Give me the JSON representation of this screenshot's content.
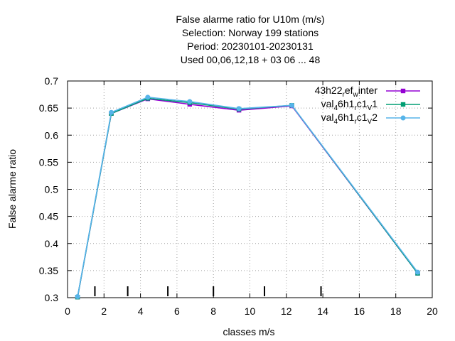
{
  "chart_data": {
    "type": "line",
    "title_lines": [
      "False alarme ratio  for U10m (m/s)",
      "Selection: Norway    199 stations",
      "Period: 20230101-20230131",
      "Used  00,06,12,18  + 03 06 ... 48"
    ],
    "xlabel": "classes m/s",
    "ylabel": "False alarme ratio",
    "xlim": [
      0,
      20
    ],
    "ylim": [
      0.3,
      0.7
    ],
    "xticks": [
      0,
      2,
      4,
      6,
      8,
      10,
      12,
      14,
      16,
      18,
      20
    ],
    "yticks": [
      0.3,
      0.35,
      0.4,
      0.45,
      0.5,
      0.55,
      0.6,
      0.65,
      0.7
    ],
    "grid": true,
    "legend_position": "top-right",
    "class_markers_x": [
      1.5,
      3.3,
      5.5,
      8.0,
      10.8,
      13.9
    ],
    "x": [
      0.55,
      2.4,
      4.4,
      6.7,
      9.4,
      12.3,
      19.2
    ],
    "series": [
      {
        "name_parts": [
          "43h22",
          "r",
          "ef",
          "w",
          "inter"
        ],
        "color": "#9400d3",
        "marker": "square",
        "values": [
          0.301,
          0.64,
          0.667,
          0.657,
          0.646,
          0.654,
          0.345
        ]
      },
      {
        "name_parts": [
          "val",
          "4",
          "6h1",
          "r",
          "c1",
          "V",
          "1"
        ],
        "color": "#009e73",
        "marker": "square",
        "values": [
          0.301,
          0.64,
          0.668,
          0.66,
          0.648,
          0.655,
          0.345
        ]
      },
      {
        "name_parts": [
          "val",
          "4",
          "6h1",
          "r",
          "c1",
          "V",
          "2"
        ],
        "color": "#56b4e9",
        "marker": "circle",
        "values": [
          0.302,
          0.642,
          0.67,
          0.662,
          0.649,
          0.655,
          0.347
        ]
      }
    ]
  }
}
